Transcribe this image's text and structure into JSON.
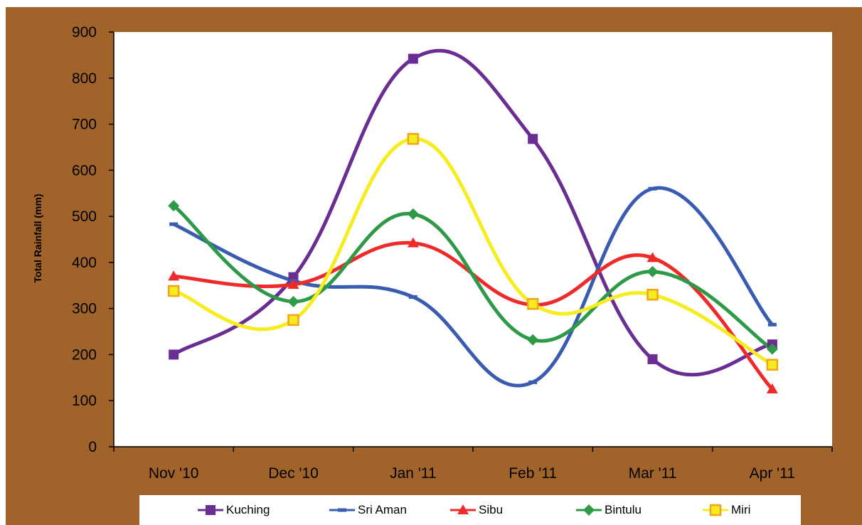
{
  "chart_data": {
    "type": "line",
    "title": "",
    "xlabel": "",
    "ylabel": "Total Rainfall (mm)",
    "ylim": [
      0,
      900
    ],
    "yticks": [
      0,
      100,
      200,
      300,
      400,
      500,
      600,
      700,
      800,
      900
    ],
    "categories": [
      "Nov '10",
      "Dec '10",
      "Jan '11",
      "Feb '11",
      "Mar '11",
      "Apr '11"
    ],
    "smoothed": true,
    "grid": false,
    "legend_position": "bottom",
    "series": [
      {
        "name": "Kuching",
        "color": "#6a2d91",
        "marker": "square",
        "values": [
          200,
          368,
          842,
          668,
          190,
          222
        ]
      },
      {
        "name": "Sri Aman",
        "color": "#3a5cb0",
        "marker": "dash",
        "values": [
          483,
          360,
          325,
          140,
          560,
          265
        ]
      },
      {
        "name": "Sibu",
        "color": "#ee2a2a",
        "marker": "triangle",
        "values": [
          370,
          352,
          442,
          308,
          410,
          125
        ]
      },
      {
        "name": "Bintulu",
        "color": "#2e9a48",
        "marker": "diamond",
        "values": [
          523,
          315,
          505,
          232,
          380,
          212
        ]
      },
      {
        "name": "Miri",
        "color": "#f7ec1f",
        "marker": "square-outlined",
        "marker_edge": "#f5a31a",
        "values": [
          338,
          275,
          668,
          310,
          330,
          178
        ]
      }
    ]
  }
}
